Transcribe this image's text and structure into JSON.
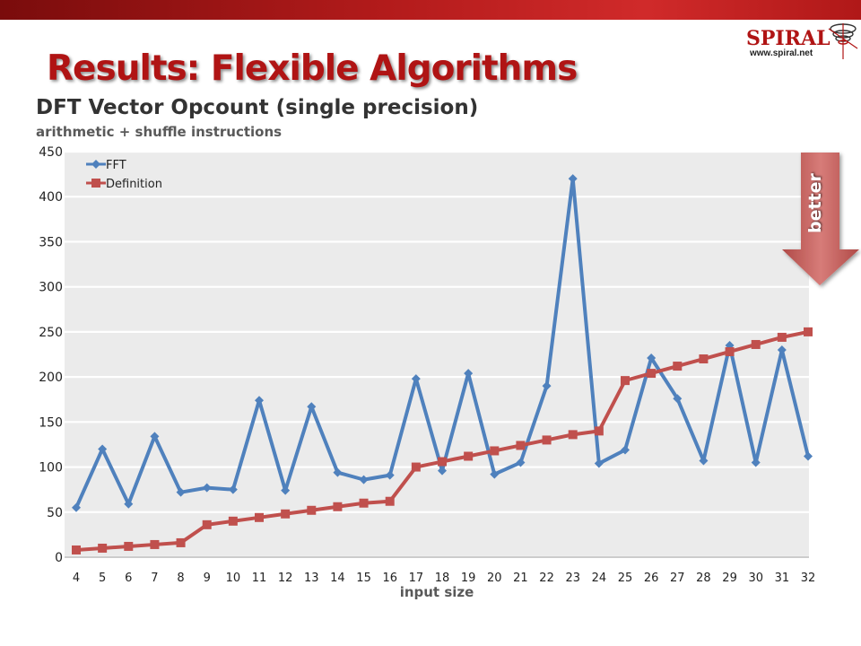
{
  "slide": {
    "title": "Results: Flexible Algorithms",
    "logo_text": "SPIRAL",
    "logo_url": "www.spiral.net",
    "better_label": "better"
  },
  "colors": {
    "title_red": "#b01414",
    "fft": "#4f81bd",
    "definition": "#c0504d",
    "plot_bg": "#ebebeb",
    "arrow": "#c0504d"
  },
  "chart_data": {
    "type": "line",
    "title": "DFT Vector Opcount (single precision)",
    "subtitle": "arithmetic + shuffle instructions",
    "xlabel": "input size",
    "ylabel": "",
    "ylim": [
      0,
      450
    ],
    "yticks": [
      0,
      50,
      100,
      150,
      200,
      250,
      300,
      350,
      400,
      450
    ],
    "grid": true,
    "legend_position": "top-left",
    "categories": [
      "4",
      "5",
      "6",
      "7",
      "8",
      "9",
      "10",
      "11",
      "12",
      "13",
      "14",
      "15",
      "16",
      "17",
      "18",
      "19",
      "20",
      "21",
      "22",
      "23",
      "24",
      "25",
      "26",
      "27",
      "28",
      "29",
      "30",
      "31",
      "32"
    ],
    "series": [
      {
        "name": "FFT",
        "marker": "diamond",
        "values": [
          55,
          120,
          59,
          134,
          72,
          77,
          75,
          174,
          74,
          167,
          94,
          86,
          91,
          198,
          96,
          204,
          92,
          105,
          190,
          420,
          104,
          119,
          221,
          176,
          107,
          235,
          105,
          230,
          112
        ]
      },
      {
        "name": "Definition",
        "marker": "square",
        "values": [
          8,
          10,
          12,
          14,
          16,
          36,
          40,
          44,
          48,
          52,
          56,
          60,
          62,
          100,
          106,
          112,
          118,
          124,
          130,
          136,
          140,
          196,
          204,
          212,
          220,
          228,
          236,
          244,
          250
        ]
      }
    ]
  }
}
